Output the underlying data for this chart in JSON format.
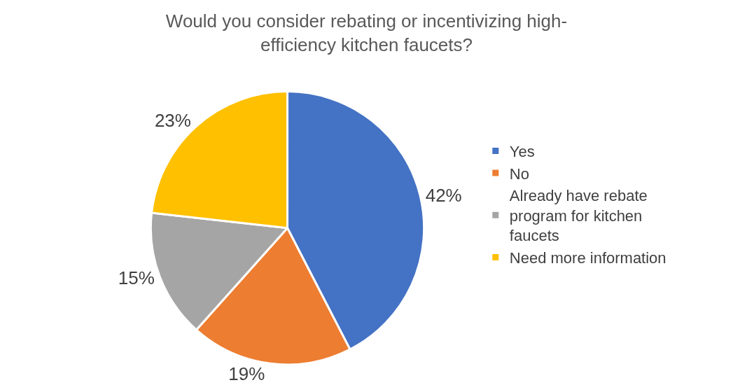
{
  "chart_data": {
    "type": "pie",
    "title": "Would you consider rebating or incentivizing high-efficiency kitchen faucets?",
    "categories": [
      "Yes",
      "No",
      "Already have rebate program for kitchen faucets",
      "Need more information"
    ],
    "values": [
      42,
      19,
      15,
      23
    ],
    "colors": [
      "#4472c4",
      "#ed7d31",
      "#a5a5a5",
      "#ffc000"
    ],
    "value_labels": [
      "42%",
      "19%",
      "15%",
      "23%"
    ],
    "legend": "right"
  }
}
